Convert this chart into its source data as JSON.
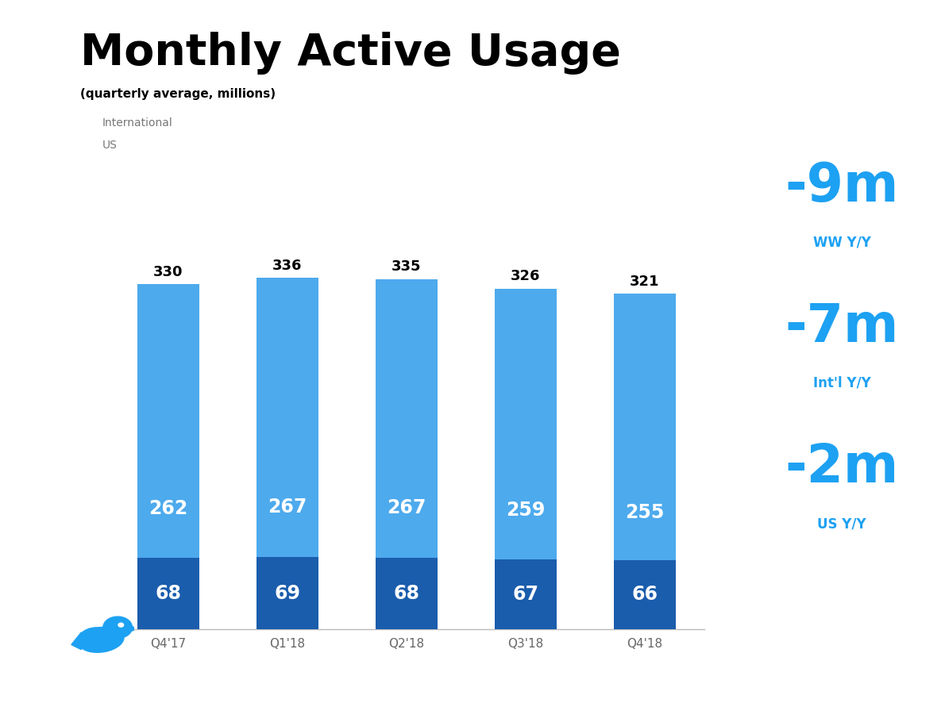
{
  "title": "Monthly Active Usage",
  "subtitle": "(quarterly average, millions)",
  "categories": [
    "Q4'17",
    "Q1'18",
    "Q2'18",
    "Q3'18",
    "Q4'18"
  ],
  "intl_values": [
    262,
    267,
    267,
    259,
    255
  ],
  "us_values": [
    68,
    69,
    68,
    67,
    66
  ],
  "totals": [
    330,
    336,
    335,
    326,
    321
  ],
  "intl_color": "#4DAAED",
  "us_color": "#1A5DAD",
  "background_color": "#FFFFFF",
  "right_panel_color": "#E5E5E5",
  "stats": [
    {
      "value": "-9m",
      "label": "WW Y/Y"
    },
    {
      "value": "-7m",
      "label": "Int'l Y/Y"
    },
    {
      "value": "-2m",
      "label": "US Y/Y"
    }
  ],
  "stats_color": "#1DA1F2",
  "legend_intl": "International",
  "legend_us": "US",
  "title_fontsize": 40,
  "subtitle_fontsize": 11,
  "bar_label_fontsize_intl": 17,
  "bar_label_fontsize_us": 17,
  "total_label_fontsize": 13,
  "xtick_fontsize": 11,
  "stats_value_fontsize": 48,
  "stats_label_fontsize": 12,
  "ylim": [
    0,
    380
  ],
  "twitter_color": "#1DA1F2"
}
